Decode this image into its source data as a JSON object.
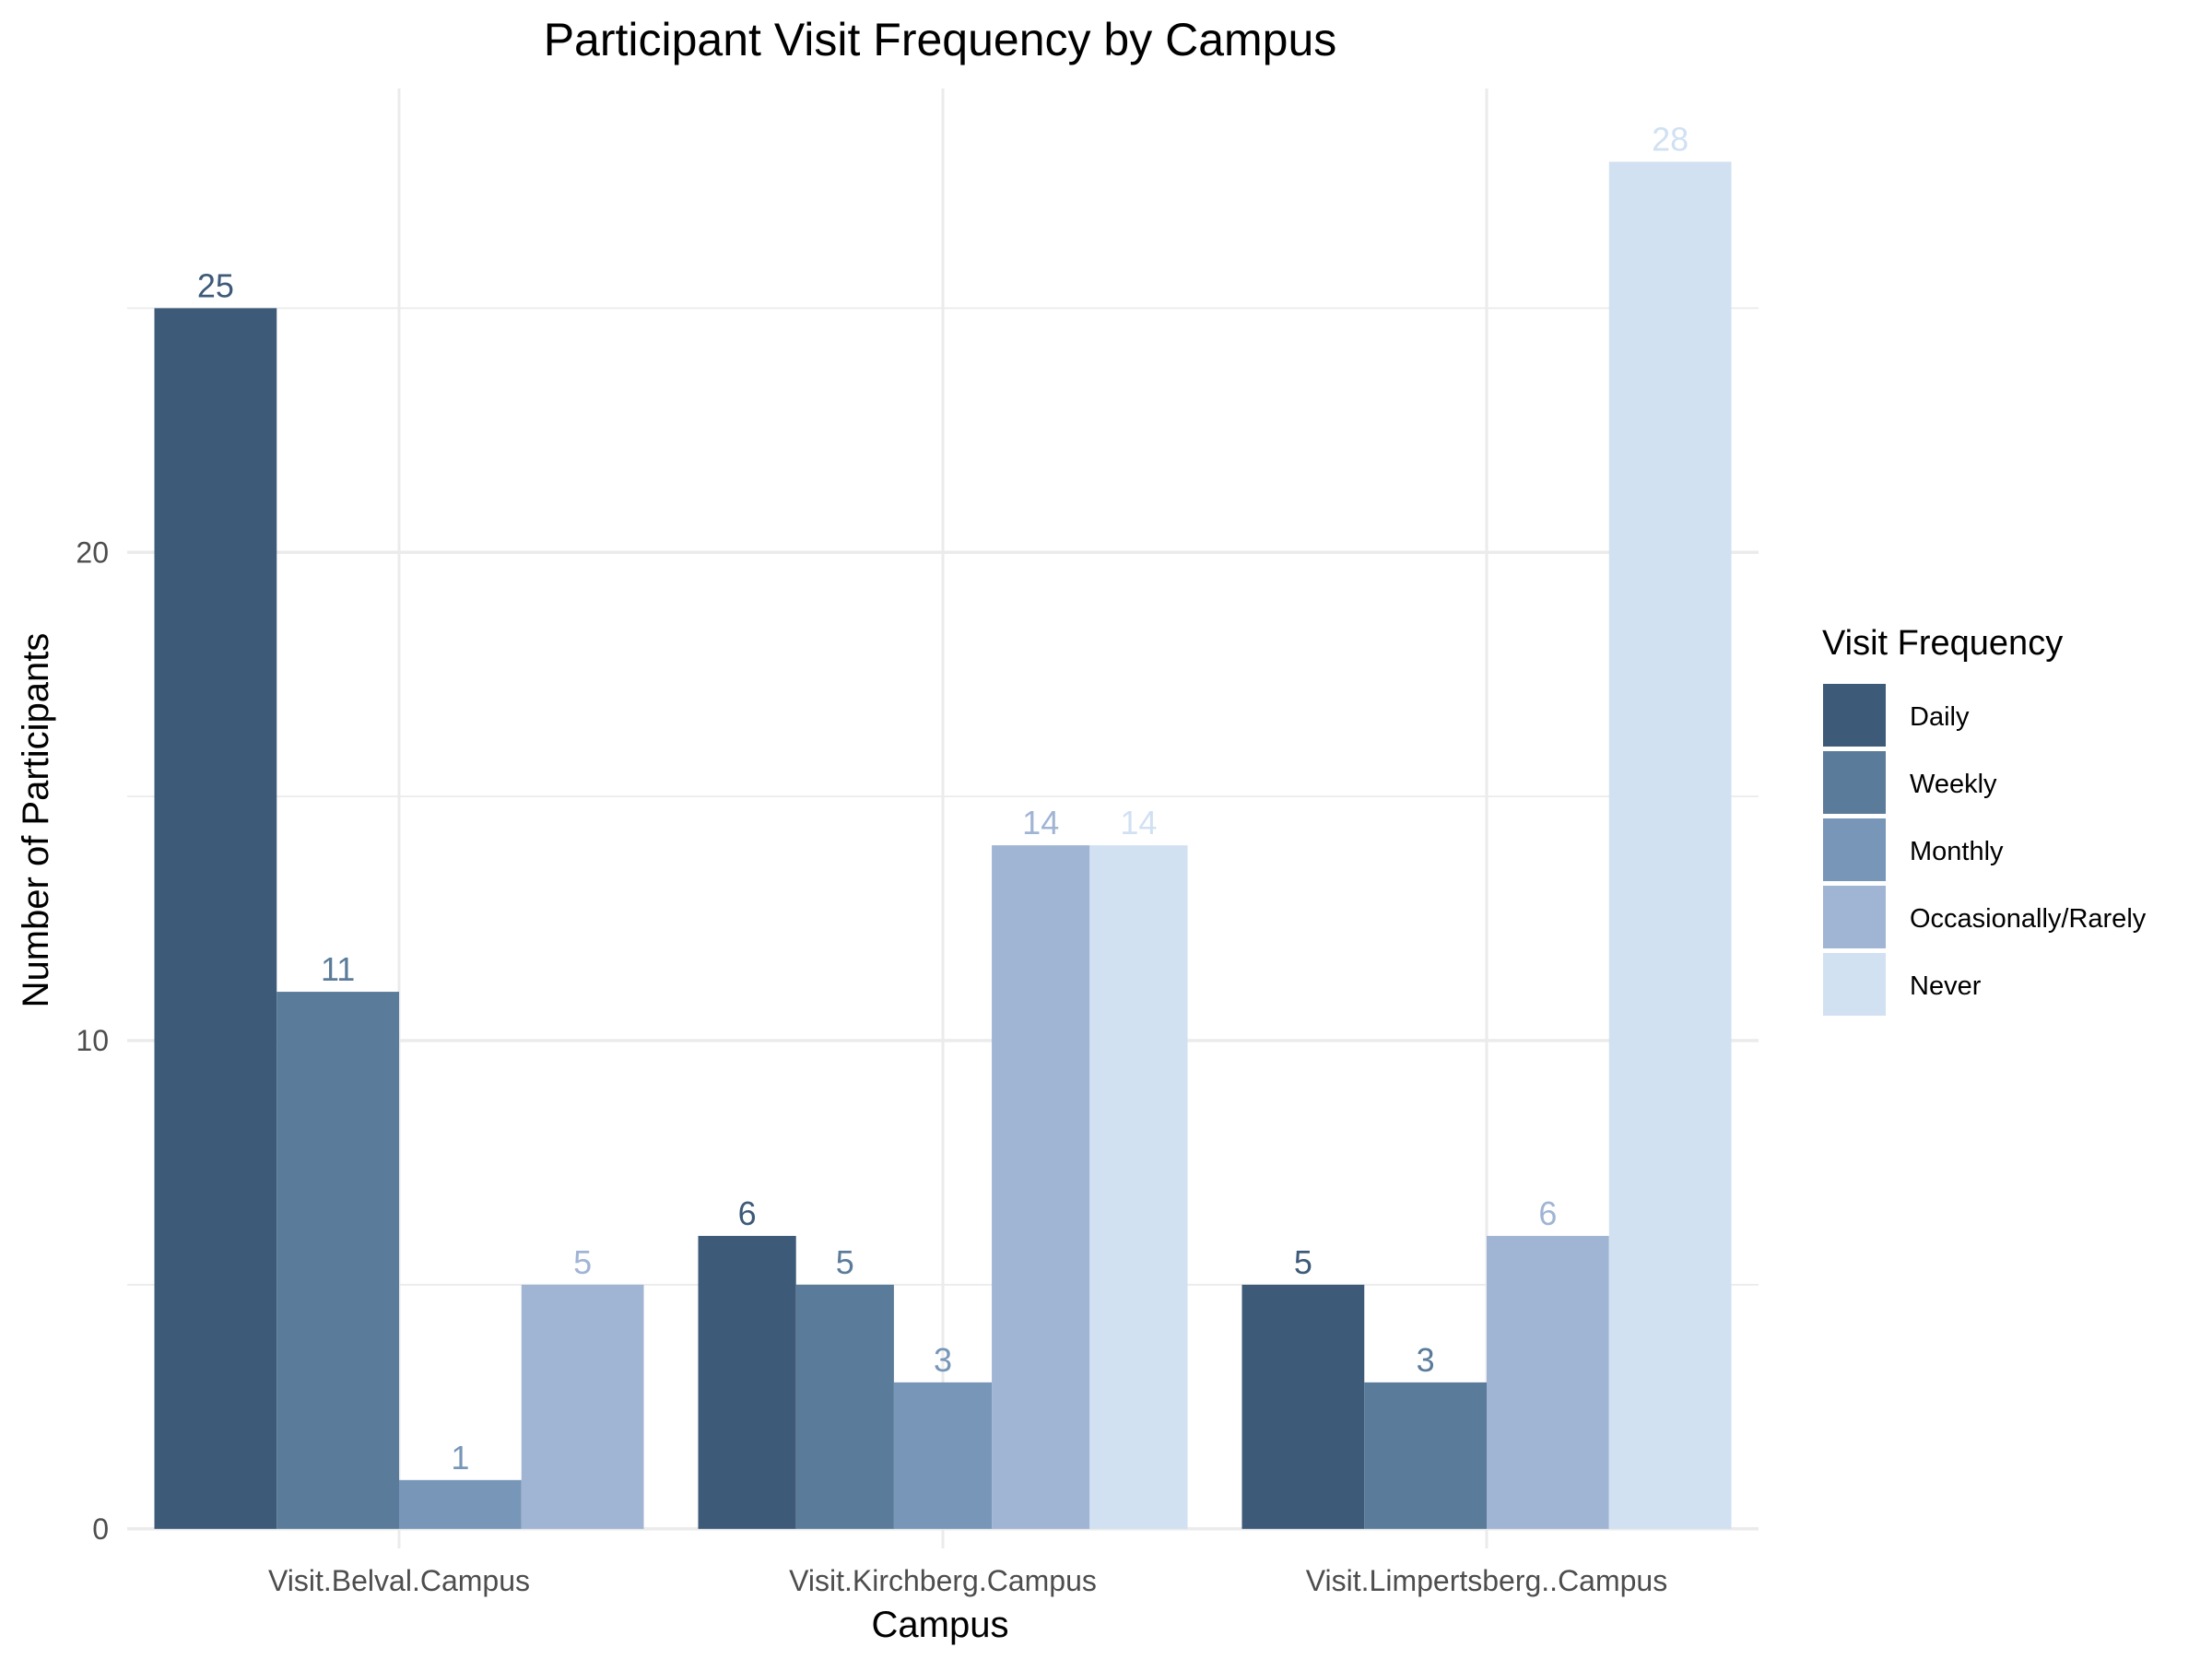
{
  "chart_data": {
    "type": "bar",
    "title": "Participant Visit Frequency by Campus",
    "xlabel": "Campus",
    "ylabel": "Number of Participants",
    "categories": [
      "Visit.Belval.Campus",
      "Visit.Kirchberg.Campus",
      "Visit.Limpertsberg..Campus"
    ],
    "series": [
      {
        "name": "Daily",
        "color": "#3d5a78",
        "values": [
          25,
          6,
          5
        ]
      },
      {
        "name": "Weekly",
        "color": "#5b7b9a",
        "values": [
          11,
          5,
          3
        ]
      },
      {
        "name": "Monthly",
        "color": "#7796b8",
        "values": [
          1,
          3,
          null
        ]
      },
      {
        "name": "Occasionally/Rarely",
        "color": "#a0b4d4",
        "values": [
          5,
          14,
          6
        ]
      },
      {
        "name": "Never",
        "color": "#d1e1f2",
        "values": [
          null,
          14,
          28
        ]
      }
    ],
    "ylim": [
      -0.4,
      29.5
    ],
    "yticks": [
      0,
      10,
      20
    ],
    "grid": true,
    "legend": {
      "title": "Visit Frequency",
      "position": "right"
    }
  }
}
